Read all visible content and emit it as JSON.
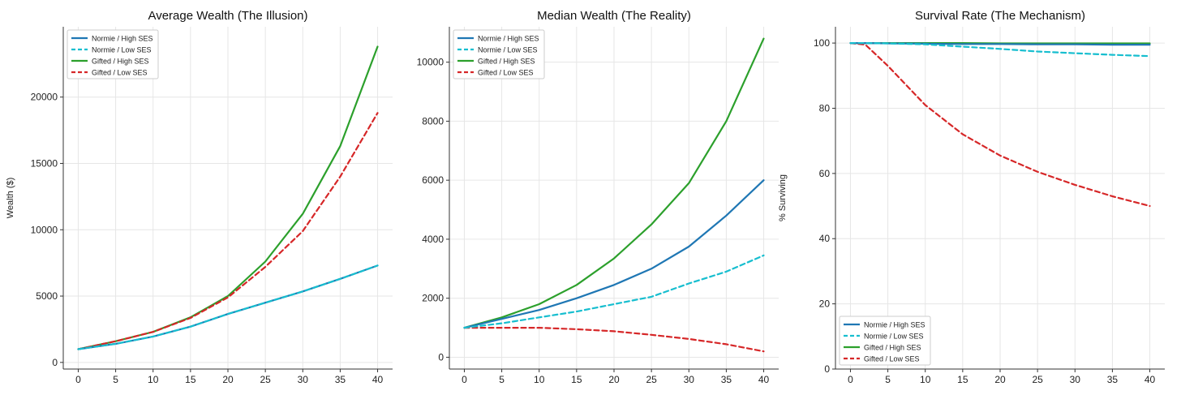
{
  "colors": {
    "normie_high": "#1f77b4",
    "normie_low": "#17becf",
    "gifted_high": "#2ca02c",
    "gifted_low": "#d62728",
    "grid": "#e6e6e6",
    "axis": "#333333"
  },
  "chart_data": [
    {
      "type": "line",
      "title": "Average Wealth (The Illusion)",
      "xlabel": "",
      "ylabel": "Wealth ($)",
      "xlim": [
        -2,
        42
      ],
      "ylim": [
        -500,
        25300
      ],
      "xticks": [
        0,
        5,
        10,
        15,
        20,
        25,
        30,
        35,
        40
      ],
      "yticks": [
        0,
        5000,
        10000,
        15000,
        20000
      ],
      "grid": true,
      "legend_position": "top-left",
      "x": [
        0,
        5,
        10,
        15,
        20,
        25,
        30,
        35,
        40
      ],
      "series": [
        {
          "name": "Normie / High SES",
          "color_key": "normie_high",
          "dashed": false,
          "values": [
            1000,
            1400,
            1950,
            2700,
            3650,
            4500,
            5350,
            6300,
            7300
          ]
        },
        {
          "name": "Normie / Low SES",
          "color_key": "normie_low",
          "dashed": true,
          "values": [
            1000,
            1400,
            1950,
            2700,
            3650,
            4500,
            5350,
            6300,
            7300
          ]
        },
        {
          "name": "Gifted / High SES",
          "color_key": "gifted_high",
          "dashed": false,
          "values": [
            1000,
            1600,
            2300,
            3400,
            5000,
            7600,
            11200,
            16300,
            23800
          ]
        },
        {
          "name": "Gifted / Low SES",
          "color_key": "gifted_low",
          "dashed": true,
          "values": [
            1000,
            1600,
            2300,
            3350,
            4900,
            7200,
            9900,
            14000,
            18800
          ]
        }
      ]
    },
    {
      "type": "line",
      "title": "Median Wealth (The Reality)",
      "xlabel": "",
      "ylabel": "",
      "xlim": [
        -2,
        42
      ],
      "ylim": [
        -400,
        11200
      ],
      "xticks": [
        0,
        5,
        10,
        15,
        20,
        25,
        30,
        35,
        40
      ],
      "yticks": [
        0,
        2000,
        4000,
        6000,
        8000,
        10000
      ],
      "grid": true,
      "legend_position": "top-left",
      "x": [
        0,
        5,
        10,
        15,
        20,
        25,
        30,
        35,
        40
      ],
      "series": [
        {
          "name": "Normie / High SES",
          "color_key": "normie_high",
          "dashed": false,
          "values": [
            1000,
            1300,
            1600,
            2000,
            2450,
            3000,
            3750,
            4800,
            6000
          ]
        },
        {
          "name": "Normie / Low SES",
          "color_key": "normie_low",
          "dashed": true,
          "values": [
            1000,
            1150,
            1350,
            1550,
            1800,
            2050,
            2500,
            2900,
            3450
          ]
        },
        {
          "name": "Gifted / High SES",
          "color_key": "gifted_high",
          "dashed": false,
          "values": [
            1000,
            1350,
            1800,
            2450,
            3350,
            4500,
            5900,
            8000,
            10800
          ]
        },
        {
          "name": "Gifted / Low SES",
          "color_key": "gifted_low",
          "dashed": true,
          "values": [
            1000,
            1000,
            1000,
            950,
            880,
            760,
            620,
            440,
            200
          ]
        }
      ]
    },
    {
      "type": "line",
      "title": "Survival Rate (The Mechanism)",
      "xlabel": "",
      "ylabel": "% Surviving",
      "xlim": [
        -2,
        42
      ],
      "ylim": [
        0,
        105
      ],
      "xticks": [
        0,
        5,
        10,
        15,
        20,
        25,
        30,
        35,
        40
      ],
      "yticks": [
        0,
        20,
        40,
        60,
        80,
        100
      ],
      "grid": true,
      "legend_position": "bottom-left",
      "x": [
        0,
        2,
        5,
        10,
        15,
        20,
        25,
        30,
        35,
        40
      ],
      "series": [
        {
          "name": "Normie / High SES",
          "color_key": "normie_high",
          "dashed": false,
          "values": [
            100,
            100,
            99.9,
            99.8,
            99.7,
            99.7,
            99.6,
            99.6,
            99.5,
            99.5
          ]
        },
        {
          "name": "Normie / Low SES",
          "color_key": "normie_low",
          "dashed": true,
          "values": [
            100,
            100,
            99.9,
            99.6,
            98.9,
            98.2,
            97.4,
            96.9,
            96.4,
            96.0
          ]
        },
        {
          "name": "Gifted / High SES",
          "color_key": "gifted_high",
          "dashed": false,
          "values": [
            100,
            100,
            100,
            100,
            100,
            99.9,
            99.9,
            99.9,
            99.9,
            99.9
          ]
        },
        {
          "name": "Gifted / Low SES",
          "color_key": "gifted_low",
          "dashed": true,
          "values": [
            100,
            99.5,
            93,
            81,
            72,
            65.5,
            60.5,
            56.5,
            53,
            50
          ]
        }
      ]
    }
  ]
}
